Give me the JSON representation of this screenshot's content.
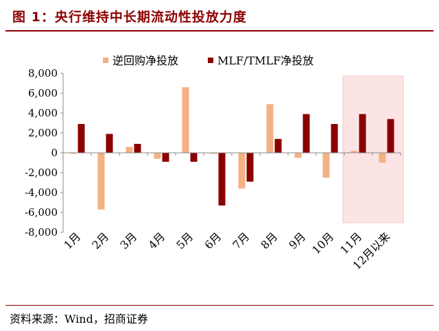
{
  "header": {
    "title": "图 1：央行维持中长期流动性投放力度"
  },
  "footer": {
    "source": "资料来源：Wind，招商证券"
  },
  "colors": {
    "reverse_repo": "#f4b183",
    "mlf": "#8b0000",
    "highlight": "#fde4e4",
    "title": "#8b0000"
  },
  "chart_data": {
    "type": "bar",
    "title": "",
    "xlabel": "",
    "ylabel": "",
    "ylim": [
      -8000,
      8000
    ],
    "yticks": [
      "8,000",
      "6,000",
      "4,000",
      "2,000",
      "0",
      "-2,000",
      "-4,000",
      "-6,000",
      "-8,000"
    ],
    "ytick_values": [
      8000,
      6000,
      4000,
      2000,
      0,
      -2000,
      -4000,
      -6000,
      -8000
    ],
    "categories": [
      "1月",
      "2月",
      "3月",
      "4月",
      "5月",
      "6月",
      "7月",
      "8月",
      "9月",
      "10月",
      "11月",
      "12月以来"
    ],
    "legend_position": "top-center",
    "highlighted_categories": [
      "11月",
      "12月以来"
    ],
    "series": [
      {
        "name": "逆回购净投放",
        "values": [
          -100,
          -5700,
          600,
          -600,
          6600,
          -100,
          -3600,
          4900,
          -500,
          -2500,
          200,
          -1000
        ]
      },
      {
        "name": "MLF/TMLF净投放",
        "values": [
          2900,
          1900,
          900,
          -900,
          -900,
          -5300,
          -2900,
          1400,
          3900,
          2900,
          3900,
          3400
        ]
      }
    ]
  }
}
